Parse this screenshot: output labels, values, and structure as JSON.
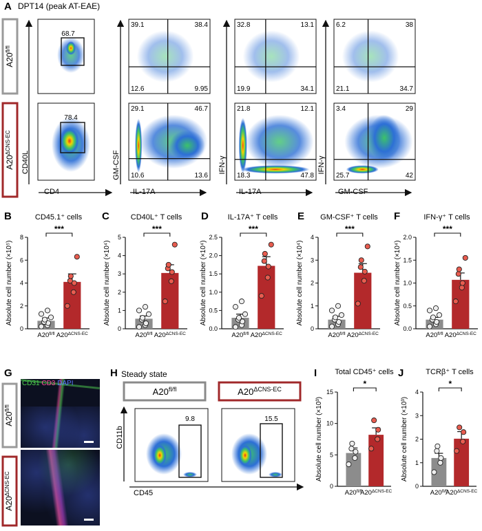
{
  "panel_letters": [
    "A",
    "B",
    "C",
    "D",
    "E",
    "F",
    "G",
    "H",
    "I",
    "J"
  ],
  "panelA": {
    "title": "DPT14 (peak AT-EAE)",
    "rows": [
      {
        "label": "A20",
        "sup": "fl/fl",
        "color": "#9a9a9a"
      },
      {
        "label": "A20",
        "sup": "ΔCNS-EC",
        "color": "#a0282a"
      }
    ],
    "gate_values": [
      "68.7",
      "78.4"
    ],
    "quadrants": [
      [
        [
          "39.1",
          "38.4",
          "12.6",
          "9.95"
        ],
        [
          "32.8",
          "13.1",
          "19.9",
          "34.1"
        ],
        [
          "6.2",
          "38",
          "21.1",
          "34.7"
        ]
      ],
      [
        [
          "29.1",
          "46.7",
          "10.6",
          "13.6"
        ],
        [
          "21.8",
          "12.1",
          "18.3",
          "47.8"
        ],
        [
          "3.4",
          "29",
          "25.7",
          "42"
        ]
      ]
    ],
    "xaxis_labels": [
      "CD4",
      "IL-17A",
      "IL-17A",
      "GM-CSF"
    ],
    "yaxis_labels": [
      "CD40L",
      "GM-CSF",
      "IFN-γ",
      "IFN-γ"
    ]
  },
  "chart_data": [
    {
      "type": "bar",
      "panel": "B",
      "title": "CD45.1⁺ cells",
      "ylabel": "Absolute cell number (×10⁵)",
      "ylim": [
        0,
        8
      ],
      "yticks": [
        "0",
        "2",
        "4",
        "6",
        "8"
      ],
      "categories": [
        "A20fl/fl",
        "A20ΔCNS-EC"
      ],
      "values": [
        0.7,
        4.1
      ],
      "sem": [
        0.25,
        0.7
      ],
      "points": [
        [
          0.2,
          0.3,
          0.5,
          0.6,
          0.8,
          1.0,
          1.3,
          1.6
        ],
        [
          2.0,
          3.2,
          4.0,
          4.2,
          4.6,
          6.3
        ]
      ],
      "significance": "***"
    },
    {
      "type": "bar",
      "panel": "C",
      "title": "CD40L⁺ T cells",
      "ylabel": "Absolute cell number (×10⁴)",
      "ylim": [
        0,
        5
      ],
      "yticks": [
        "0",
        "1",
        "2",
        "3",
        "4",
        "5"
      ],
      "categories": [
        "A20fl/fl",
        "A20ΔCNS-EC"
      ],
      "values": [
        0.55,
        3.05
      ],
      "sem": [
        0.15,
        0.45
      ],
      "points": [
        [
          0.1,
          0.2,
          0.3,
          0.5,
          0.6,
          0.8,
          1.0,
          1.2
        ],
        [
          1.5,
          2.6,
          3.1,
          3.3,
          3.5,
          4.6
        ]
      ],
      "significance": "***"
    },
    {
      "type": "bar",
      "panel": "D",
      "title": "IL-17A⁺ T cells",
      "ylabel": "Absolute cell number (×10⁴)",
      "ylim": [
        0,
        2.5
      ],
      "yticks": [
        "0.0",
        "0.5",
        "1.0",
        "1.5",
        "2.0",
        "2.5"
      ],
      "categories": [
        "A20fl/fl",
        "A20ΔCNS-EC"
      ],
      "values": [
        0.3,
        1.72
      ],
      "sem": [
        0.1,
        0.25
      ],
      "points": [
        [
          0.05,
          0.1,
          0.2,
          0.25,
          0.3,
          0.4,
          0.6,
          0.75
        ],
        [
          0.9,
          1.4,
          1.7,
          1.85,
          2.05,
          2.3
        ]
      ],
      "significance": "***"
    },
    {
      "type": "bar",
      "panel": "E",
      "title": "GM-CSF⁺ T cells",
      "ylabel": "Absolute cell number (×10⁴)",
      "ylim": [
        0,
        4
      ],
      "yticks": [
        "0",
        "1",
        "2",
        "3",
        "4"
      ],
      "categories": [
        "A20fl/fl",
        "A20ΔCNS-EC"
      ],
      "values": [
        0.4,
        2.45
      ],
      "sem": [
        0.15,
        0.4
      ],
      "points": [
        [
          0.1,
          0.2,
          0.3,
          0.4,
          0.5,
          0.6,
          0.8,
          1.0
        ],
        [
          1.1,
          2.1,
          2.5,
          2.7,
          3.0,
          3.6
        ]
      ],
      "significance": "***"
    },
    {
      "type": "bar",
      "panel": "F",
      "title": "IFN-γ⁺ T cells",
      "ylabel": "Absolute cell number (×10⁴)",
      "ylim": [
        0,
        2.0
      ],
      "yticks": [
        "0.0",
        "0.5",
        "1.0",
        "1.5",
        "2.0"
      ],
      "categories": [
        "A20fl/fl",
        "A20ΔCNS-EC"
      ],
      "values": [
        0.2,
        1.07
      ],
      "sem": [
        0.05,
        0.15
      ],
      "points": [
        [
          0.05,
          0.1,
          0.15,
          0.2,
          0.25,
          0.3,
          0.4,
          0.45
        ],
        [
          0.6,
          0.9,
          1.0,
          1.2,
          1.3,
          1.55
        ]
      ],
      "significance": "***"
    },
    {
      "type": "bar",
      "panel": "I",
      "title": "Total CD45⁺ cells",
      "ylabel": "Absolute cell number (×10³)",
      "ylim": [
        0,
        15
      ],
      "yticks": [
        "0",
        "5",
        "10",
        "15"
      ],
      "categories": [
        "A20fl/fl",
        "A20ΔCNS-EC"
      ],
      "values": [
        5.3,
        8.2
      ],
      "sem": [
        0.8,
        1.1
      ],
      "points": [
        [
          3.5,
          4.5,
          5.5,
          6.0,
          6.8
        ],
        [
          6.0,
          7.5,
          9.0,
          10.5
        ]
      ],
      "significance": "*"
    },
    {
      "type": "bar",
      "panel": "J",
      "title": "TCRβ⁺ T cells",
      "ylabel": "Absolute cell number (×10³)",
      "ylim": [
        0,
        4
      ],
      "yticks": [
        "0",
        "1",
        "2",
        "3",
        "4"
      ],
      "categories": [
        "A20fl/fl",
        "A20ΔCNS-EC"
      ],
      "values": [
        1.2,
        2.02
      ],
      "sem": [
        0.2,
        0.3
      ],
      "points": [
        [
          0.6,
          1.0,
          1.2,
          1.5,
          1.7
        ],
        [
          1.5,
          1.9,
          2.3,
          2.5
        ]
      ],
      "significance": "*"
    }
  ],
  "panelG": {
    "legend": [
      {
        "text": "CD31",
        "color": "#4cd24c"
      },
      {
        "text": "CD3",
        "color": "#ff4fa0"
      },
      {
        "text": "DAPI",
        "color": "#5a78ff"
      }
    ],
    "rows": [
      {
        "label": "A20",
        "sup": "fl/fl",
        "color": "#9a9a9a"
      },
      {
        "label": "A20",
        "sup": "ΔCNS-EC",
        "color": "#a0282a"
      }
    ]
  },
  "panelH": {
    "title": "Steady state",
    "headers": [
      {
        "label": "A20",
        "sup": "fl/fl",
        "color": "#8a8a8a"
      },
      {
        "label": "A20",
        "sup": "ΔCNS-EC",
        "color": "#a0282a"
      }
    ],
    "gate_values": [
      "9.8",
      "15.5"
    ],
    "xaxis_label": "CD45",
    "yaxis_label": "CD11b"
  },
  "colors": {
    "control": "#8c8c8c",
    "ko": "#b3292b",
    "ko_point": "#e85c4f",
    "control_point": "#ededed"
  }
}
